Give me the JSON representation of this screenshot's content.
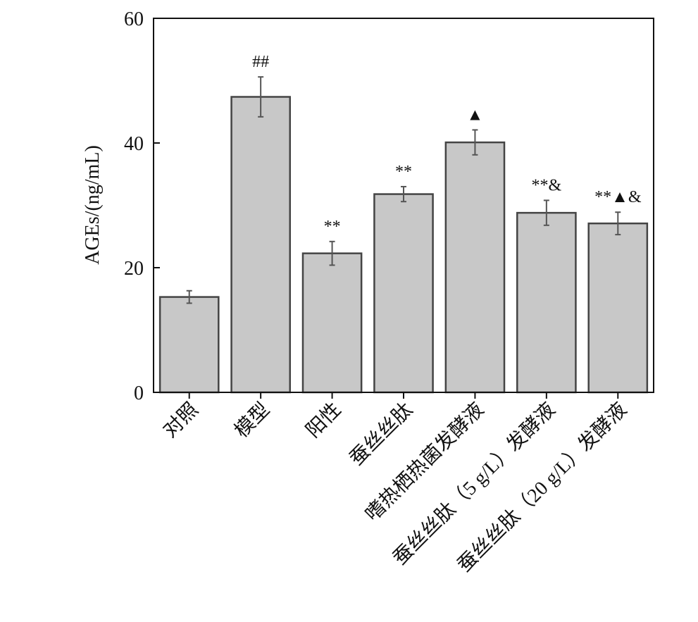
{
  "chart_data": {
    "type": "bar",
    "ylabel": "AGEs/(ng/mL)",
    "ylim": [
      0,
      60
    ],
    "yticks": [
      0,
      20,
      40,
      60
    ],
    "grid": false,
    "categories": [
      "对照",
      "模型",
      "阳性",
      "蚕丝丝肽",
      "嗜热栖热菌发酵液",
      "蚕丝丝肽（5 g/L）发酵液",
      "蚕丝丝肽（20 g/L）发酵液"
    ],
    "values": [
      15.3,
      47.4,
      22.3,
      31.8,
      40.1,
      28.8,
      27.1
    ],
    "errors": [
      1.0,
      3.2,
      1.9,
      1.2,
      2.0,
      2.0,
      1.8
    ],
    "significance": [
      "",
      "##",
      "**",
      "**",
      "▲",
      "**&",
      "**▲&"
    ],
    "bar_color": "#c8c8c8",
    "edge_color": "#444444"
  }
}
